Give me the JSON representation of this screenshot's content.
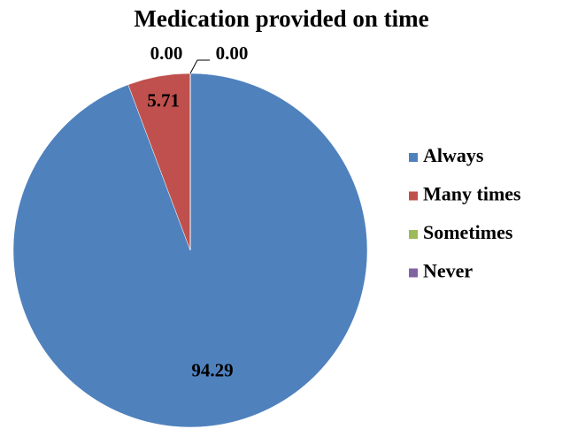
{
  "chart_data": {
    "type": "pie",
    "title": "Medication provided on time",
    "categories": [
      "Always",
      "Many times",
      "Sometimes",
      "Never"
    ],
    "values": [
      94.29,
      5.71,
      0,
      0
    ],
    "value_labels": [
      "94.29",
      "5.71",
      "0.00",
      "0.00"
    ],
    "colors": [
      "#4f81bd",
      "#c0504d",
      "#9bbb59",
      "#8064a2"
    ],
    "legend": "right"
  }
}
